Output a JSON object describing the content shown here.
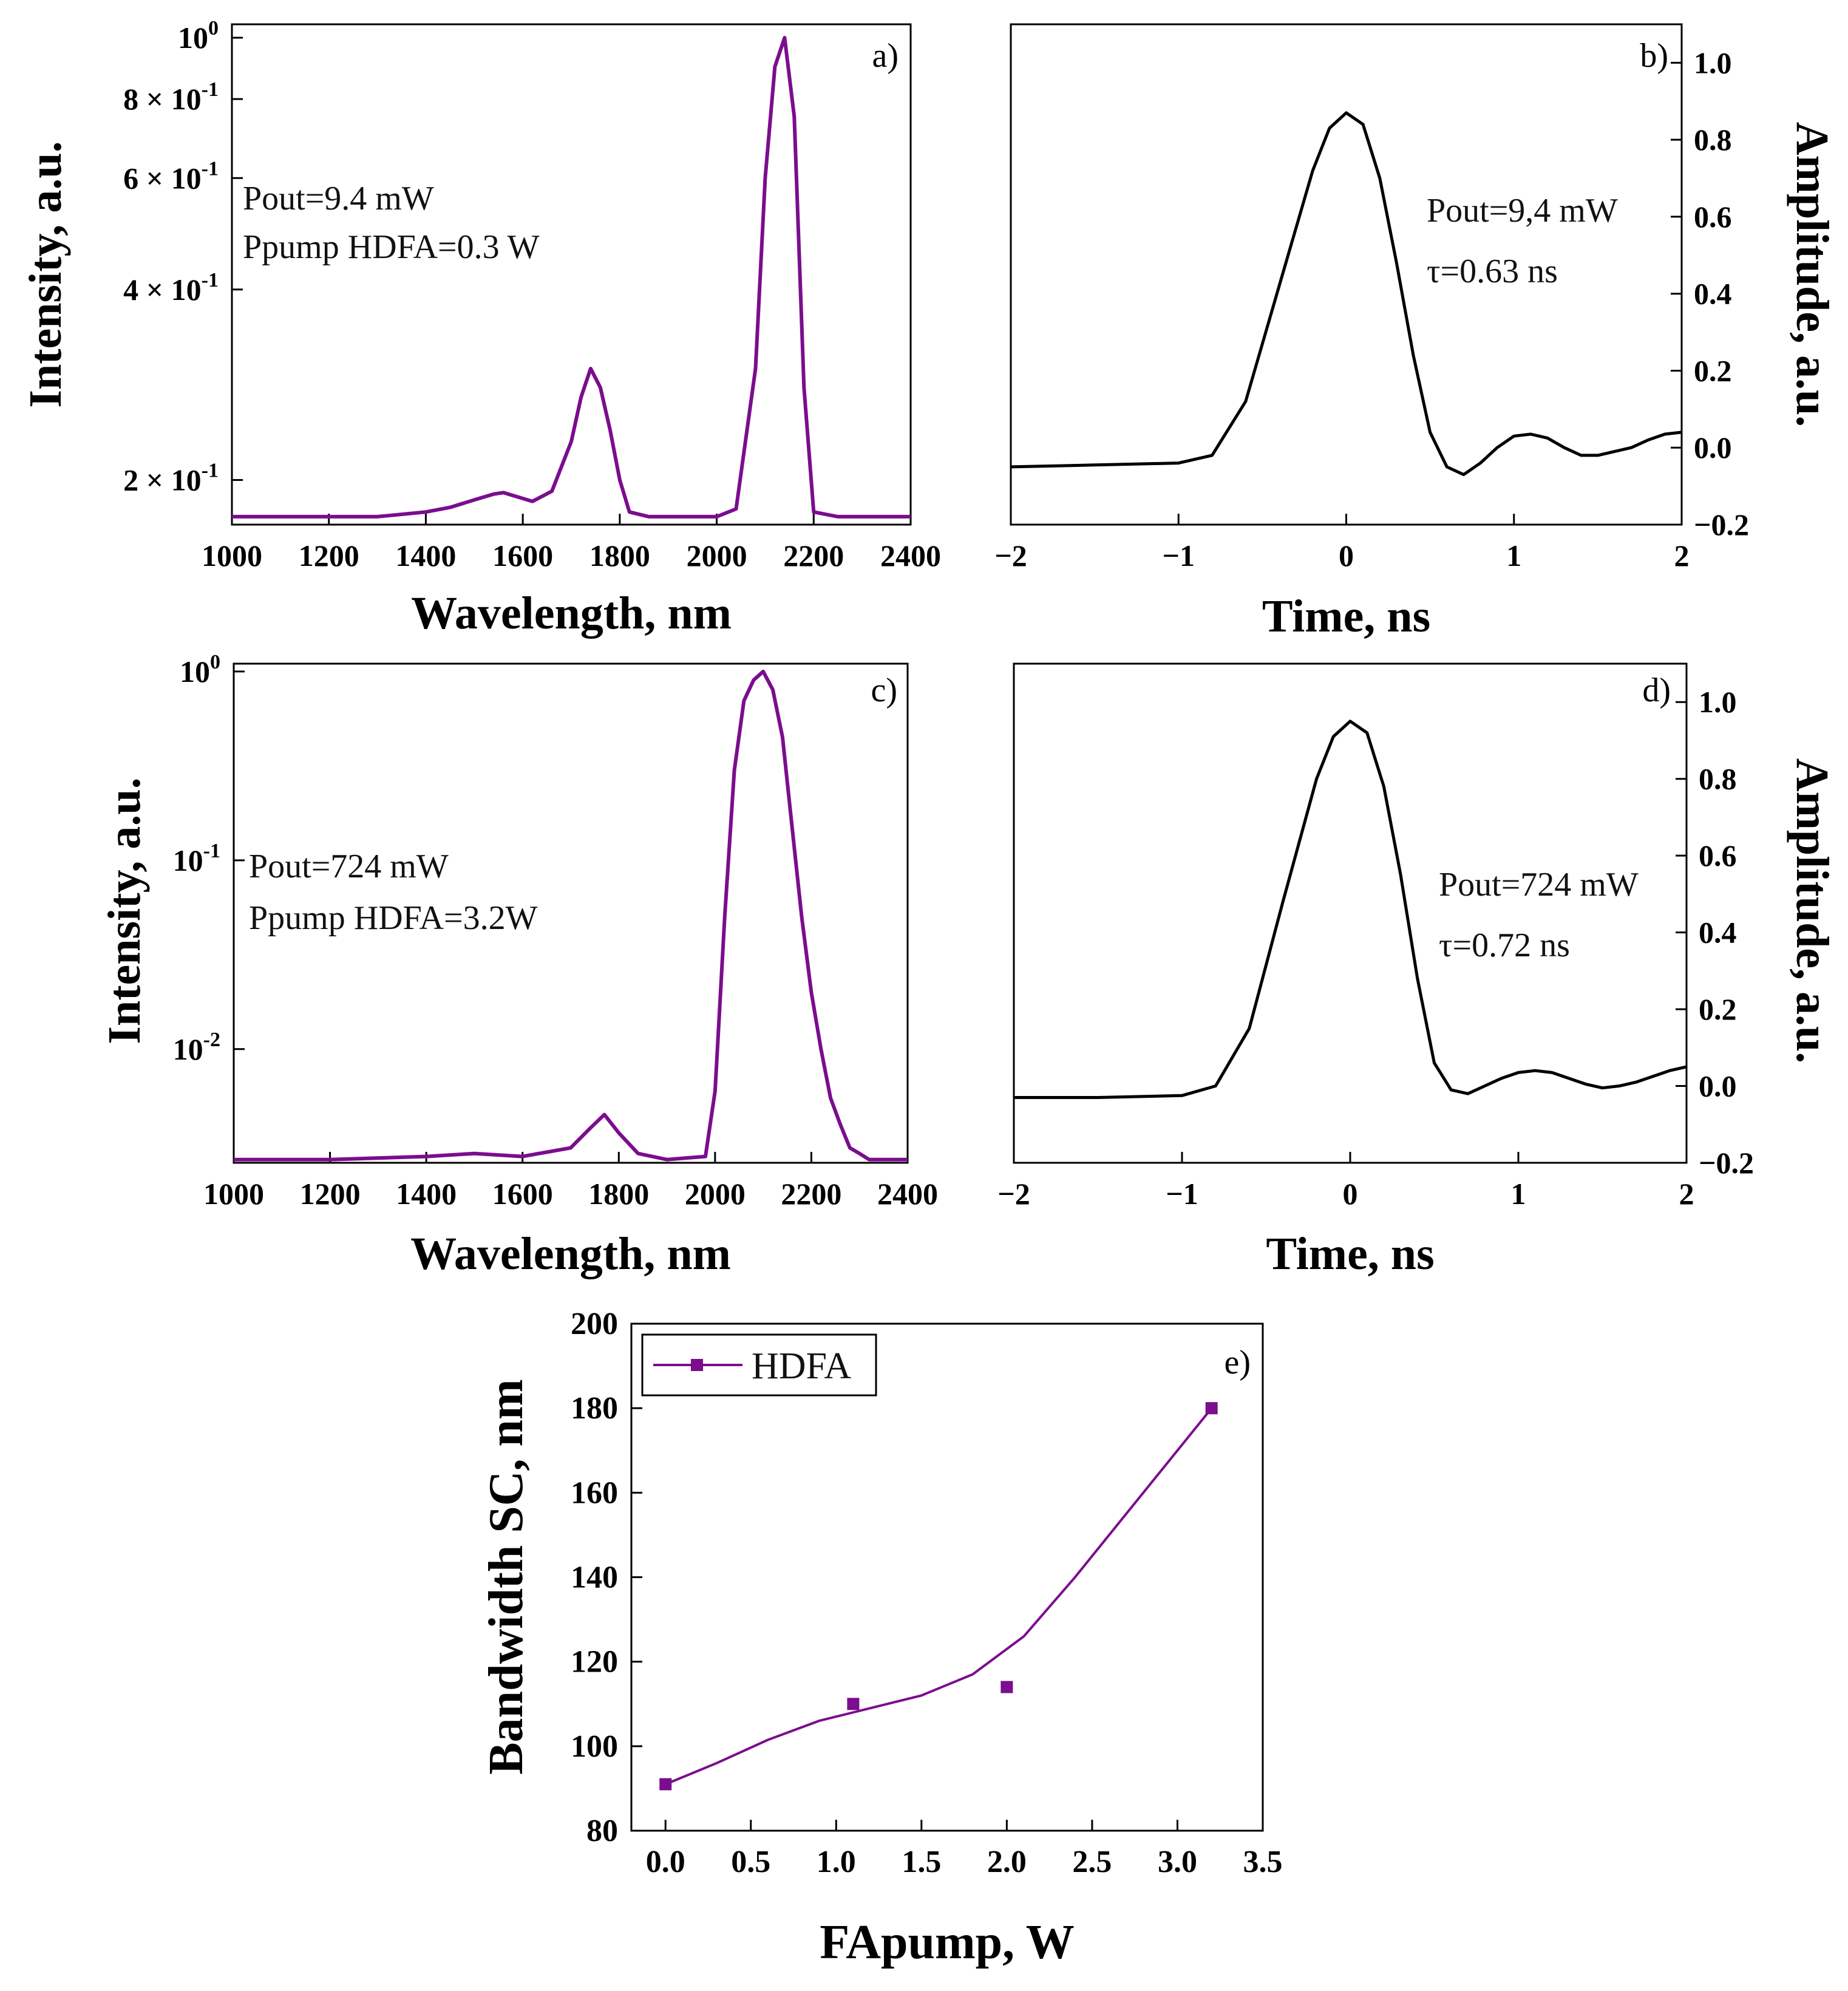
{
  "colors": {
    "purple": "#7B0D8E",
    "black": "#000000"
  },
  "chart_data": [
    {
      "panel": "a)",
      "type": "line",
      "xlabel": "Wavelength, nm",
      "ylabel": "Intensity, a.u.",
      "yscale": "log",
      "xlim": [
        1000,
        2400
      ],
      "ylim": [
        0.17,
        1.05
      ],
      "xticks": [
        1000,
        1200,
        1400,
        1600,
        1800,
        2000,
        2200,
        2400
      ],
      "xtick_labels": [
        "1000",
        "1200",
        "1400",
        "1600",
        "1800",
        "2000",
        "2200",
        "2400"
      ],
      "yticks": [
        0.2,
        0.4,
        0.6,
        0.8,
        1.0
      ],
      "ytick_labels": [
        {
          "base": "2 × 10",
          "exp": "-1"
        },
        {
          "base": "4 × 10",
          "exp": "-1"
        },
        {
          "base": "6 × 10",
          "exp": "-1"
        },
        {
          "base": "8 × 10",
          "exp": "-1"
        },
        {
          "base": "10",
          "exp": "0"
        }
      ],
      "annotations": [
        "Pout=9.4 mW",
        "Ppump HDFA=0.3 W"
      ],
      "series": [
        {
          "color": "#7B0D8E",
          "x": [
            1000,
            1100,
            1200,
            1300,
            1400,
            1450,
            1500,
            1540,
            1560,
            1580,
            1620,
            1660,
            1700,
            1720,
            1740,
            1760,
            1780,
            1800,
            1820,
            1860,
            1900,
            2000,
            2040,
            2080,
            2100,
            2120,
            2140,
            2160,
            2180,
            2200,
            2250,
            2300,
            2400
          ],
          "y": [
            0.175,
            0.175,
            0.175,
            0.175,
            0.178,
            0.181,
            0.186,
            0.19,
            0.191,
            0.189,
            0.185,
            0.192,
            0.23,
            0.27,
            0.3,
            0.28,
            0.24,
            0.2,
            0.178,
            0.175,
            0.175,
            0.175,
            0.18,
            0.3,
            0.6,
            0.9,
            1.0,
            0.75,
            0.28,
            0.178,
            0.175,
            0.175,
            0.175
          ]
        }
      ]
    },
    {
      "panel": "b)",
      "type": "line",
      "xlabel": "Time, ns",
      "ylabel": "Amplitude, a.u.",
      "yaxis_side": "right",
      "xlim": [
        -2,
        2
      ],
      "ylim": [
        -0.2,
        1.1
      ],
      "xticks": [
        -2,
        -1,
        0,
        1,
        2
      ],
      "xtick_labels": [
        "−2",
        "−1",
        "0",
        "1",
        "2"
      ],
      "yticks": [
        -0.2,
        0.0,
        0.2,
        0.4,
        0.6,
        0.8,
        1.0
      ],
      "ytick_labels": [
        "−0.2",
        "0.0",
        "0.2",
        "0.4",
        "0.6",
        "0.8",
        "1.0"
      ],
      "annotations": [
        "Pout=9,4 mW",
        "τ=0.63 ns"
      ],
      "series": [
        {
          "color": "#000000",
          "x": [
            -2,
            -1.5,
            -1.0,
            -0.8,
            -0.6,
            -0.4,
            -0.2,
            -0.1,
            0,
            0.1,
            0.2,
            0.3,
            0.4,
            0.5,
            0.6,
            0.7,
            0.8,
            0.9,
            1.0,
            1.1,
            1.2,
            1.3,
            1.4,
            1.5,
            1.6,
            1.7,
            1.8,
            1.9,
            2.0
          ],
          "y": [
            -0.05,
            -0.045,
            -0.04,
            -0.02,
            0.12,
            0.42,
            0.72,
            0.83,
            0.87,
            0.84,
            0.7,
            0.48,
            0.24,
            0.04,
            -0.05,
            -0.07,
            -0.04,
            0.0,
            0.03,
            0.035,
            0.025,
            0.0,
            -0.02,
            -0.02,
            -0.01,
            0.0,
            0.02,
            0.035,
            0.04
          ]
        }
      ]
    },
    {
      "panel": "c)",
      "type": "line",
      "xlabel": "Wavelength, nm",
      "ylabel": "Intensity, a.u.",
      "yscale": "log",
      "xlim": [
        1000,
        2400
      ],
      "ylim": [
        0.0025,
        1.1
      ],
      "xticks": [
        1000,
        1200,
        1400,
        1600,
        1800,
        2000,
        2200,
        2400
      ],
      "xtick_labels": [
        "1000",
        "1200",
        "1400",
        "1600",
        "1800",
        "2000",
        "2200",
        "2400"
      ],
      "yticks": [
        0.01,
        0.1,
        1.0
      ],
      "ytick_labels": [
        {
          "base": "10",
          "exp": "-2"
        },
        {
          "base": "10",
          "exp": "-1"
        },
        {
          "base": "10",
          "exp": "0"
        }
      ],
      "annotations": [
        "Pout=724 mW",
        "Ppump HDFA=3.2W"
      ],
      "series": [
        {
          "color": "#7B0D8E",
          "x": [
            1000,
            1200,
            1400,
            1500,
            1600,
            1700,
            1740,
            1770,
            1800,
            1840,
            1900,
            1980,
            2000,
            2020,
            2040,
            2060,
            2080,
            2100,
            2120,
            2140,
            2160,
            2180,
            2200,
            2220,
            2240,
            2260,
            2280,
            2300,
            2320,
            2400
          ],
          "y": [
            0.0026,
            0.0026,
            0.0027,
            0.0028,
            0.0027,
            0.003,
            0.0038,
            0.0045,
            0.0036,
            0.0028,
            0.0026,
            0.0027,
            0.006,
            0.05,
            0.3,
            0.7,
            0.9,
            1.0,
            0.8,
            0.45,
            0.15,
            0.05,
            0.02,
            0.01,
            0.0055,
            0.004,
            0.003,
            0.0028,
            0.0026,
            0.0026
          ]
        }
      ]
    },
    {
      "panel": "d)",
      "type": "line",
      "xlabel": "Time, ns",
      "ylabel": "Amplitude, a.u.",
      "yaxis_side": "right",
      "xlim": [
        -2,
        2
      ],
      "ylim": [
        -0.2,
        1.1
      ],
      "xticks": [
        -2,
        -1,
        0,
        1,
        2
      ],
      "xtick_labels": [
        "−2",
        "−1",
        "0",
        "1",
        "2"
      ],
      "yticks": [
        -0.2,
        0.0,
        0.2,
        0.4,
        0.6,
        0.8,
        1.0
      ],
      "ytick_labels": [
        "−0.2",
        "0.0",
        "0.2",
        "0.4",
        "0.6",
        "0.8",
        "1.0"
      ],
      "annotations": [
        "Pout=724 mW",
        "τ=0.72 ns"
      ],
      "series": [
        {
          "color": "#000000",
          "x": [
            -2,
            -1.5,
            -1.0,
            -0.8,
            -0.6,
            -0.4,
            -0.2,
            -0.1,
            0,
            0.1,
            0.2,
            0.3,
            0.4,
            0.5,
            0.6,
            0.7,
            0.8,
            0.9,
            1.0,
            1.1,
            1.2,
            1.3,
            1.4,
            1.5,
            1.6,
            1.7,
            1.8,
            1.9,
            2.0
          ],
          "y": [
            -0.03,
            -0.03,
            -0.025,
            0.0,
            0.15,
            0.48,
            0.8,
            0.91,
            0.95,
            0.92,
            0.78,
            0.55,
            0.28,
            0.06,
            -0.01,
            -0.02,
            0.0,
            0.02,
            0.035,
            0.04,
            0.035,
            0.02,
            0.005,
            -0.005,
            0.0,
            0.01,
            0.025,
            0.04,
            0.05
          ]
        }
      ]
    },
    {
      "panel": "e)",
      "type": "scatter",
      "xlabel": "FApump, W",
      "ylabel": "Bandwidth SC, nm",
      "xlim": [
        -0.2,
        3.5
      ],
      "ylim": [
        80,
        200
      ],
      "xticks": [
        0.0,
        0.5,
        1.0,
        1.5,
        2.0,
        2.5,
        3.0,
        3.5
      ],
      "xtick_labels": [
        "0.0",
        "0.5",
        "1.0",
        "1.5",
        "2.0",
        "2.5",
        "3.0",
        "3.5"
      ],
      "yticks": [
        80,
        100,
        120,
        140,
        160,
        180,
        200
      ],
      "ytick_labels": [
        "80",
        "100",
        "120",
        "140",
        "160",
        "180",
        "200"
      ],
      "legend": {
        "label": "HDFA",
        "position": "top-left"
      },
      "series": [
        {
          "name": "HDFA",
          "color": "#7B0D8E",
          "x": [
            0.0,
            1.1,
            2.0,
            3.2
          ],
          "y": [
            91,
            110,
            114,
            180
          ],
          "fit_x": [
            0.0,
            0.3,
            0.6,
            0.9,
            1.2,
            1.5,
            1.8,
            2.1,
            2.4,
            2.7,
            3.0,
            3.2
          ],
          "fit_y": [
            91,
            96,
            101.5,
            106,
            109,
            112,
            117,
            126,
            140,
            155,
            170,
            180
          ]
        }
      ]
    }
  ]
}
